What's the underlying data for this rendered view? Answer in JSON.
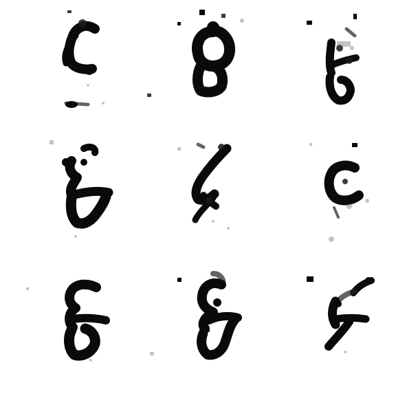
{
  "image": {
    "description_kind": "grid-of-generated-digits",
    "background_color": "#ffffff",
    "ink_color": "#0a0a0a",
    "grid": {
      "rows": 3,
      "cols": 3
    },
    "cells": [
      {
        "glyph": "blob-hook"
      },
      {
        "glyph": "ring-loop"
      },
      {
        "glyph": "stacked-strokes"
      },
      {
        "glyph": "zigzag-blob"
      },
      {
        "glyph": "slanted-cross"
      },
      {
        "glyph": "open-c"
      },
      {
        "glyph": "figure-eight"
      },
      {
        "glyph": "eight-slanted"
      },
      {
        "glyph": "slash-loop"
      }
    ]
  }
}
